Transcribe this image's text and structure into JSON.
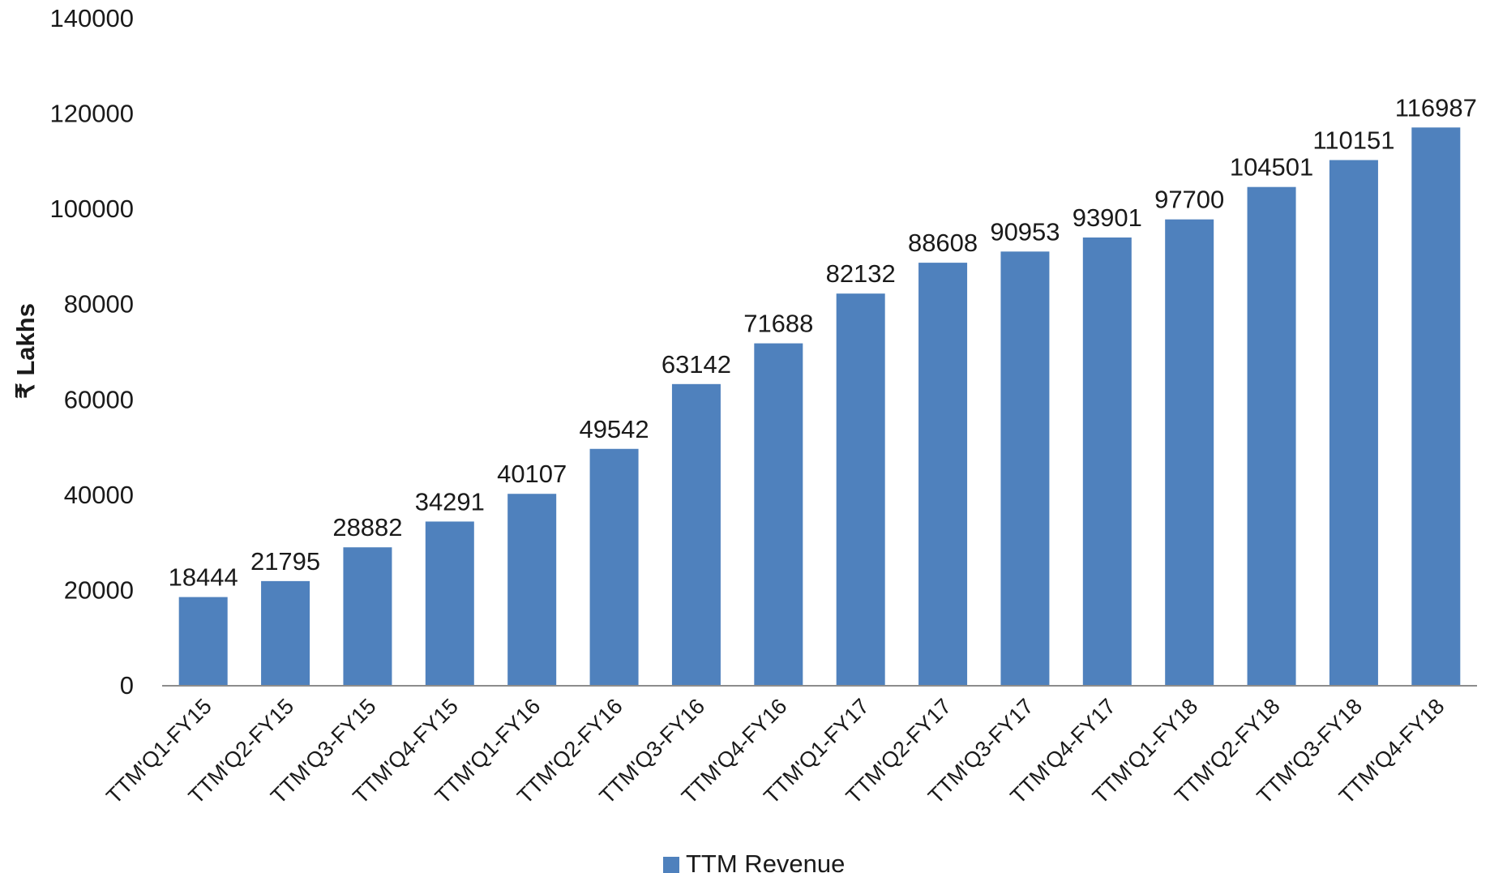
{
  "chart_data": {
    "type": "bar",
    "categories": [
      "TTM'Q1-FY15",
      "TTM'Q2-FY15",
      "TTM'Q3-FY15",
      "TTM'Q4-FY15",
      "TTM'Q1-FY16",
      "TTM'Q2-FY16",
      "TTM'Q3-FY16",
      "TTM'Q4-FY16",
      "TTM'Q1-FY17",
      "TTM'Q2-FY17",
      "TTM'Q3-FY17",
      "TTM'Q4-FY17",
      "TTM'Q1-FY18",
      "TTM'Q2-FY18",
      "TTM'Q3-FY18",
      "TTM'Q4-FY18"
    ],
    "series": [
      {
        "name": "TTM Revenue",
        "values": [
          18444,
          21795,
          28882,
          34291,
          40107,
          49542,
          63142,
          71688,
          82132,
          88608,
          90953,
          93901,
          97700,
          104501,
          110151,
          116987
        ]
      }
    ],
    "title": "",
    "xlabel": "",
    "ylabel": "₹ Lakhs",
    "ylim": [
      0,
      140000
    ],
    "yticks": [
      "0",
      "20000",
      "40000",
      "60000",
      "80000",
      "100000",
      "120000",
      "140000"
    ],
    "data_labels": [
      "18444",
      "21795",
      "28882",
      "34291",
      "40107",
      "49542",
      "63142",
      "71688",
      "82132",
      "88608",
      "90953",
      "93901",
      "97700",
      "104501",
      "110151",
      "116987"
    ],
    "grid": false,
    "legend": "bottom",
    "bar_color": "#4f81bd",
    "axis_color": "#8c8c8c"
  }
}
